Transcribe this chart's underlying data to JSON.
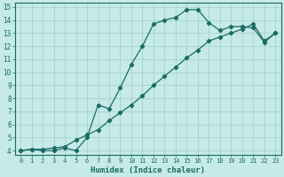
{
  "xlabel": "Humidex (Indice chaleur)",
  "bg_color": "#c5eae7",
  "grid_color": "#9ecfca",
  "line_color": "#1a6b64",
  "spine_color": "#1a6b64",
  "xlim": [
    -0.5,
    23.5
  ],
  "ylim": [
    3.7,
    15.3
  ],
  "xticks": [
    0,
    1,
    2,
    3,
    4,
    5,
    6,
    7,
    8,
    9,
    10,
    11,
    12,
    13,
    14,
    15,
    16,
    17,
    18,
    19,
    20,
    21,
    22,
    23
  ],
  "yticks": [
    4,
    5,
    6,
    7,
    8,
    9,
    10,
    11,
    12,
    13,
    14,
    15
  ],
  "line1_x": [
    0,
    1,
    2,
    3,
    4,
    5,
    6,
    7,
    8,
    9,
    10,
    11,
    12,
    13,
    14,
    15,
    16,
    17,
    18,
    19,
    20,
    21,
    22,
    23
  ],
  "line1_y": [
    4.0,
    4.1,
    4.0,
    4.0,
    4.2,
    4.0,
    5.0,
    7.5,
    7.2,
    8.8,
    10.6,
    12.0,
    13.7,
    14.0,
    14.2,
    14.8,
    14.8,
    13.8,
    13.2,
    13.5,
    13.5,
    13.4,
    12.3,
    13.0
  ],
  "line2_x": [
    0,
    1,
    2,
    3,
    4,
    5,
    6,
    7,
    8,
    9,
    10,
    11,
    12,
    13,
    14,
    15,
    16,
    17,
    18,
    19,
    20,
    21,
    22,
    23
  ],
  "line2_y": [
    4.0,
    4.1,
    4.1,
    4.2,
    4.3,
    4.8,
    5.2,
    5.6,
    6.3,
    6.9,
    7.5,
    8.2,
    9.0,
    9.7,
    10.4,
    11.1,
    11.7,
    12.4,
    12.7,
    13.0,
    13.3,
    13.7,
    12.4,
    13.0
  ],
  "xlabel_fontsize": 6.5,
  "tick_fontsize_x": 5.0,
  "tick_fontsize_y": 5.5,
  "linewidth": 0.9,
  "markersize": 2.2
}
